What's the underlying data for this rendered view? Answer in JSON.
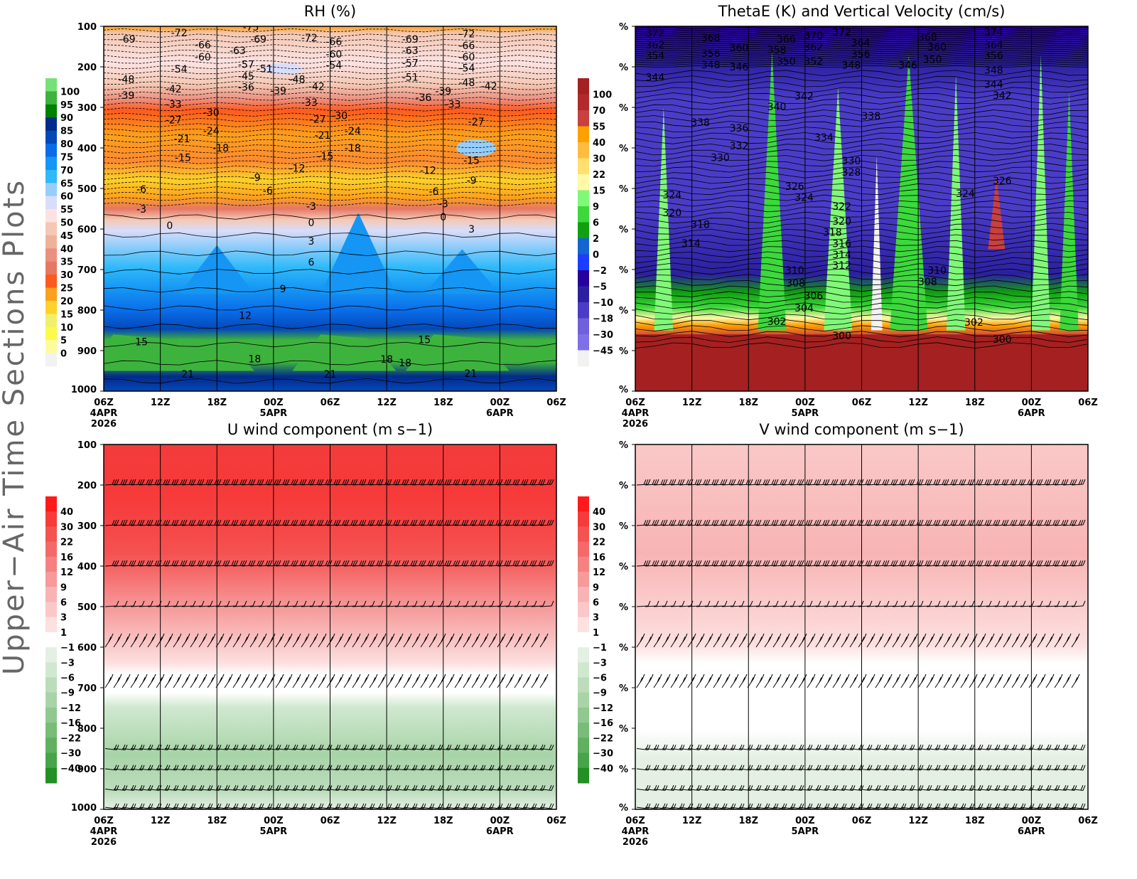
{
  "side_title": "Upper−Air Time Sections Plots",
  "x_ticks": [
    "06Z",
    "12Z",
    "18Z",
    "00Z",
    "06Z",
    "12Z",
    "18Z",
    "00Z",
    "06Z"
  ],
  "x_dates": [
    {
      "tick_index": 0,
      "lines": [
        "4APR",
        "2026"
      ]
    },
    {
      "tick_index": 3,
      "lines": [
        "5APR"
      ]
    },
    {
      "tick_index": 7,
      "lines": [
        "6APR"
      ]
    }
  ],
  "chart_data": [
    {
      "id": "rh",
      "type": "heatmap",
      "title": "RH (%)",
      "xlim_hours": [
        0,
        48
      ],
      "ylim": [
        100,
        1000
      ],
      "y_ticks": [
        "100",
        "200",
        "300",
        "400",
        "500",
        "600",
        "700",
        "800",
        "900",
        "1000"
      ],
      "colorbar": {
        "labels": [
          "100",
          "95",
          "90",
          "85",
          "80",
          "75",
          "70",
          "65",
          "60",
          "55",
          "50",
          "45",
          "40",
          "35",
          "30",
          "25",
          "20",
          "15",
          "10",
          "5",
          "0"
        ],
        "colors": [
          "#78e078",
          "#3db33d",
          "#008000",
          "#022a8a",
          "#0448b8",
          "#0a6ce8",
          "#1596f4",
          "#30bafa",
          "#96cefa",
          "#d8ddfa",
          "#fde2e2",
          "#f4c8b4",
          "#edb29a",
          "#eb9080",
          "#e57865",
          "#fd5a1e",
          "#fda01c",
          "#fdd22a",
          "#f2ef6a",
          "#fdfa4a",
          "#fdfc9c",
          "#f2f2f2"
        ]
      },
      "contour_labels": [
        {
          "t": 2.5,
          "p": 132,
          "v": "-69"
        },
        {
          "t": 8,
          "p": 116,
          "v": "-72"
        },
        {
          "t": 10.5,
          "p": 146,
          "v": "-66"
        },
        {
          "t": 10.5,
          "p": 175,
          "v": "-60"
        },
        {
          "t": 8,
          "p": 205,
          "v": "-54"
        },
        {
          "t": 2.4,
          "p": 231,
          "v": "-48"
        },
        {
          "t": 2.4,
          "p": 270,
          "v": "-39"
        },
        {
          "t": 7.4,
          "p": 254,
          "v": "-42"
        },
        {
          "t": 7.4,
          "p": 292,
          "v": "-33"
        },
        {
          "t": 7.4,
          "p": 331,
          "v": "-27"
        },
        {
          "t": 8.3,
          "p": 377,
          "v": "-21"
        },
        {
          "t": 8.4,
          "p": 424,
          "v": "-15"
        },
        {
          "t": 11.4,
          "p": 312,
          "v": "-30"
        },
        {
          "t": 11.4,
          "p": 358,
          "v": "-24"
        },
        {
          "t": 12.4,
          "p": 400,
          "v": "-18"
        },
        {
          "t": 4,
          "p": 502,
          "v": "-6"
        },
        {
          "t": 4,
          "p": 551,
          "v": "-3"
        },
        {
          "t": 7,
          "p": 591,
          "v": "0"
        },
        {
          "t": 22,
          "p": 630,
          "v": "3"
        },
        {
          "t": 22,
          "p": 682,
          "v": "6"
        },
        {
          "t": 19,
          "p": 747,
          "v": "9"
        },
        {
          "t": 15,
          "p": 813,
          "v": "12"
        },
        {
          "t": 4,
          "p": 878,
          "v": "15"
        },
        {
          "t": 16,
          "p": 920,
          "v": "18"
        },
        {
          "t": 8.9,
          "p": 958,
          "v": "21"
        },
        {
          "t": 24,
          "p": 958,
          "v": "21"
        },
        {
          "t": 38.9,
          "p": 956,
          "v": "21"
        },
        {
          "t": 34,
          "p": 873,
          "v": "15"
        },
        {
          "t": 30,
          "p": 921,
          "v": "18"
        },
        {
          "t": 22,
          "p": 584,
          "v": "0"
        },
        {
          "t": 22,
          "p": 544,
          "v": "-3"
        },
        {
          "t": 36,
          "p": 570,
          "v": "0"
        },
        {
          "t": 39,
          "p": 600,
          "v": "3"
        },
        {
          "t": 16.1,
          "p": 473,
          "v": "-9"
        },
        {
          "t": 20.5,
          "p": 450,
          "v": "-12"
        },
        {
          "t": 34.4,
          "p": 455,
          "v": "-12"
        },
        {
          "t": 39,
          "p": 480,
          "v": "-9"
        },
        {
          "t": 39,
          "p": 431,
          "v": "-15"
        },
        {
          "t": 35,
          "p": 507,
          "v": "-6"
        },
        {
          "t": 36,
          "p": 538,
          "v": "-3"
        },
        {
          "t": 15.6,
          "p": 102,
          "v": "-75"
        },
        {
          "t": 16.4,
          "p": 132,
          "v": "-69"
        },
        {
          "t": 14.2,
          "p": 160,
          "v": "-63"
        },
        {
          "t": 15.1,
          "p": 182,
          "v": "-57"
        },
        {
          "t": 15.1,
          "p": 204,
          "v": "-51"
        },
        {
          "t": 15.1,
          "p": 223,
          "v": "-45"
        },
        {
          "t": 15.1,
          "p": 250,
          "v": "-36"
        },
        {
          "t": 18.5,
          "p": 259,
          "v": "-39"
        },
        {
          "t": 20.5,
          "p": 231,
          "v": "-48"
        },
        {
          "t": 21.8,
          "p": 248,
          "v": "-42"
        },
        {
          "t": 21.8,
          "p": 128,
          "v": "-72"
        },
        {
          "t": 24.4,
          "p": 138,
          "v": "-66"
        },
        {
          "t": 24.4,
          "p": 168,
          "v": "-60"
        },
        {
          "t": 24.4,
          "p": 196,
          "v": "-54"
        },
        {
          "t": 32.5,
          "p": 132,
          "v": "-69"
        },
        {
          "t": 32.5,
          "p": 160,
          "v": "-63"
        },
        {
          "t": 32.5,
          "p": 190,
          "v": "-57"
        },
        {
          "t": 32.5,
          "p": 213,
          "v": "-51"
        },
        {
          "t": 38.5,
          "p": 118,
          "v": "-72"
        },
        {
          "t": 38.5,
          "p": 147,
          "v": "-66"
        },
        {
          "t": 38.5,
          "p": 175,
          "v": "-60"
        },
        {
          "t": 38.5,
          "p": 203,
          "v": "-54"
        },
        {
          "t": 38.5,
          "p": 226,
          "v": "-48"
        },
        {
          "t": 39.5,
          "p": 247,
          "v": "-42"
        },
        {
          "t": 36,
          "p": 260,
          "v": "-39"
        },
        {
          "t": 33.9,
          "p": 275,
          "v": "-36"
        },
        {
          "t": 37,
          "p": 292,
          "v": "-33"
        },
        {
          "t": 39.5,
          "p": 335,
          "v": "-27"
        },
        {
          "t": 21.8,
          "p": 288,
          "v": "-33"
        },
        {
          "t": 22.7,
          "p": 329,
          "v": "-27"
        },
        {
          "t": 25,
          "p": 320,
          "v": "-30"
        },
        {
          "t": 23.2,
          "p": 368,
          "v": "-21"
        },
        {
          "t": 26.4,
          "p": 358,
          "v": "-24"
        },
        {
          "t": 26.4,
          "p": 400,
          "v": "-18"
        },
        {
          "t": 23.5,
          "p": 420,
          "v": "-15"
        },
        {
          "t": 17.4,
          "p": 505,
          "v": "-6"
        },
        {
          "t": 30.6,
          "p": 930,
          "v": "18"
        }
      ]
    },
    {
      "id": "thetae",
      "type": "heatmap",
      "title": "ThetaE (K) and Vertical Velocity (cm/s)",
      "xlim_hours": [
        0,
        48
      ],
      "ylim": [
        100,
        1000
      ],
      "y_ticks": [
        "%",
        "%",
        "%",
        "%",
        "%",
        "%",
        "%",
        "%",
        "%",
        "%"
      ],
      "colorbar": {
        "labels": [
          "100",
          "70",
          "55",
          "40",
          "30",
          "22",
          "15",
          "9",
          "6",
          "2",
          "0",
          "−2",
          "−5",
          "−10",
          "−18",
          "−30",
          "−45"
        ],
        "colors": [
          "#a52020",
          "#b22a2a",
          "#c84040",
          "#ffa000",
          "#ffbc40",
          "#ffe070",
          "#fff8a8",
          "#80f878",
          "#3cd83c",
          "#10a010",
          "#1464d2",
          "#1e3cff",
          "#2800a0",
          "#2c20a0",
          "#4b3cc8",
          "#7060dc",
          "#8070e8",
          "#f2f2f2"
        ]
      },
      "contour_labels": [
        {
          "t": 2.1,
          "p": 116,
          "v": "372"
        },
        {
          "t": 2.1,
          "p": 146,
          "v": "362"
        },
        {
          "t": 2.1,
          "p": 172,
          "v": "354"
        },
        {
          "t": 2.1,
          "p": 225,
          "v": "344"
        },
        {
          "t": 6.9,
          "p": 337,
          "v": "338"
        },
        {
          "t": 11,
          "p": 351,
          "v": "336"
        },
        {
          "t": 11,
          "p": 395,
          "v": "332"
        },
        {
          "t": 9,
          "p": 424,
          "v": "330"
        },
        {
          "t": 3.9,
          "p": 516,
          "v": "324"
        },
        {
          "t": 3.9,
          "p": 560,
          "v": "320"
        },
        {
          "t": 6.9,
          "p": 589,
          "v": "318"
        },
        {
          "t": 5.9,
          "p": 635,
          "v": "314"
        },
        {
          "t": 16.9,
          "p": 702,
          "v": "310"
        },
        {
          "t": 17,
          "p": 733,
          "v": "308"
        },
        {
          "t": 18.9,
          "p": 765,
          "v": "306"
        },
        {
          "t": 17.9,
          "p": 795,
          "v": "304"
        },
        {
          "t": 15,
          "p": 828,
          "v": "302"
        },
        {
          "t": 21.9,
          "p": 863,
          "v": "300"
        },
        {
          "t": 16.9,
          "p": 495,
          "v": "326"
        },
        {
          "t": 17.9,
          "p": 522,
          "v": "324"
        },
        {
          "t": 21.9,
          "p": 544,
          "v": "322"
        },
        {
          "t": 21.9,
          "p": 568,
          "v": "320"
        },
        {
          "t": 20.9,
          "p": 596,
          "v": "318"
        },
        {
          "t": 21.9,
          "p": 624,
          "v": "316"
        },
        {
          "t": 21.9,
          "p": 651,
          "v": "314"
        },
        {
          "t": 21.9,
          "p": 677,
          "v": "312"
        },
        {
          "t": 22.9,
          "p": 432,
          "v": "330"
        },
        {
          "t": 22.9,
          "p": 460,
          "v": "328"
        },
        {
          "t": 20,
          "p": 374,
          "v": "334"
        },
        {
          "t": 25,
          "p": 321,
          "v": "338"
        },
        {
          "t": 17.9,
          "p": 272,
          "v": "342"
        },
        {
          "t": 15,
          "p": 298,
          "v": "340"
        },
        {
          "t": 28.9,
          "p": 196,
          "v": "346"
        },
        {
          "t": 22.9,
          "p": 196,
          "v": "348"
        },
        {
          "t": 18.9,
          "p": 186,
          "v": "352"
        },
        {
          "t": 16,
          "p": 186,
          "v": "350"
        },
        {
          "t": 18.9,
          "p": 123,
          "v": "370"
        },
        {
          "t": 21.9,
          "p": 114,
          "v": "372"
        },
        {
          "t": 16,
          "p": 132,
          "v": "366"
        },
        {
          "t": 15,
          "p": 158,
          "v": "358"
        },
        {
          "t": 18.9,
          "p": 151,
          "v": "362"
        },
        {
          "t": 23.9,
          "p": 140,
          "v": "364"
        },
        {
          "t": 23.9,
          "p": 168,
          "v": "356"
        },
        {
          "t": 31,
          "p": 126,
          "v": "368"
        },
        {
          "t": 32,
          "p": 151,
          "v": "360"
        },
        {
          "t": 31.5,
          "p": 182,
          "v": "350"
        },
        {
          "t": 38,
          "p": 114,
          "v": "374"
        },
        {
          "t": 38,
          "p": 146,
          "v": "364"
        },
        {
          "t": 38,
          "p": 172,
          "v": "356"
        },
        {
          "t": 38,
          "p": 196,
          "v": "348"
        },
        {
          "t": 38,
          "p": 231,
          "v": "344"
        },
        {
          "t": 38.9,
          "p": 258,
          "v": "342"
        },
        {
          "t": 38.9,
          "p": 481,
          "v": "326"
        },
        {
          "t": 35,
          "p": 512,
          "v": "324"
        },
        {
          "t": 32,
          "p": 702,
          "v": "310"
        },
        {
          "t": 31,
          "p": 730,
          "v": "308"
        },
        {
          "t": 35.9,
          "p": 830,
          "v": "302"
        },
        {
          "t": 38.9,
          "p": 872,
          "v": "300"
        },
        {
          "t": 8,
          "p": 128,
          "v": "368"
        },
        {
          "t": 8,
          "p": 167,
          "v": "356"
        },
        {
          "t": 8,
          "p": 195,
          "v": "348"
        },
        {
          "t": 11,
          "p": 153,
          "v": "360"
        },
        {
          "t": 11,
          "p": 200,
          "v": "346"
        }
      ]
    },
    {
      "id": "u_wind",
      "type": "heatmap",
      "title": "U wind component (m s−1)",
      "xlim_hours": [
        0,
        48
      ],
      "ylim": [
        100,
        1000
      ],
      "y_ticks": [
        "100",
        "200",
        "300",
        "400",
        "500",
        "600",
        "700",
        "800",
        "900",
        "1000"
      ],
      "colorbar": {
        "labels": [
          "40",
          "30",
          "22",
          "16",
          "12",
          "9",
          "6",
          "3",
          "1",
          "−1",
          "−3",
          "−6",
          "−9",
          "−12",
          "−16",
          "−22",
          "−30",
          "−40"
        ],
        "colors": [
          "#ff1a1a",
          "#f73a3a",
          "#f55252",
          "#f46a6a",
          "#f58282",
          "#f69a9a",
          "#f8b4b4",
          "#fac8c8",
          "#fde0e0",
          "#ffffff",
          "#e4f0e4",
          "#d0e8d0",
          "#bcdcbc",
          "#a8d4a8",
          "#90c890",
          "#78bc78",
          "#60b060",
          "#48a448",
          "#229022"
        ]
      },
      "barb_levels": [
        100,
        200,
        300,
        400,
        500,
        600,
        700,
        850,
        900,
        950,
        995
      ]
    },
    {
      "id": "v_wind",
      "type": "heatmap",
      "title": "V wind component (m s−1)",
      "xlim_hours": [
        0,
        48
      ],
      "ylim": [
        100,
        1000
      ],
      "y_ticks": [
        "%",
        "%",
        "%",
        "%",
        "%",
        "%",
        "%",
        "%",
        "%",
        "%"
      ],
      "colorbar": {
        "labels": [
          "40",
          "30",
          "22",
          "16",
          "12",
          "9",
          "6",
          "3",
          "1",
          "−1",
          "−3",
          "−6",
          "−9",
          "−12",
          "−16",
          "−22",
          "−30",
          "−40"
        ],
        "colors": [
          "#ff1a1a",
          "#f73a3a",
          "#f55252",
          "#f46a6a",
          "#f58282",
          "#f69a9a",
          "#f8b4b4",
          "#fac8c8",
          "#fde0e0",
          "#ffffff",
          "#e4f0e4",
          "#d0e8d0",
          "#bcdcbc",
          "#a8d4a8",
          "#90c890",
          "#78bc78",
          "#60b060",
          "#48a448",
          "#229022"
        ]
      },
      "barb_levels": [
        100,
        200,
        300,
        400,
        500,
        600,
        700,
        850,
        900,
        950,
        995
      ]
    }
  ]
}
